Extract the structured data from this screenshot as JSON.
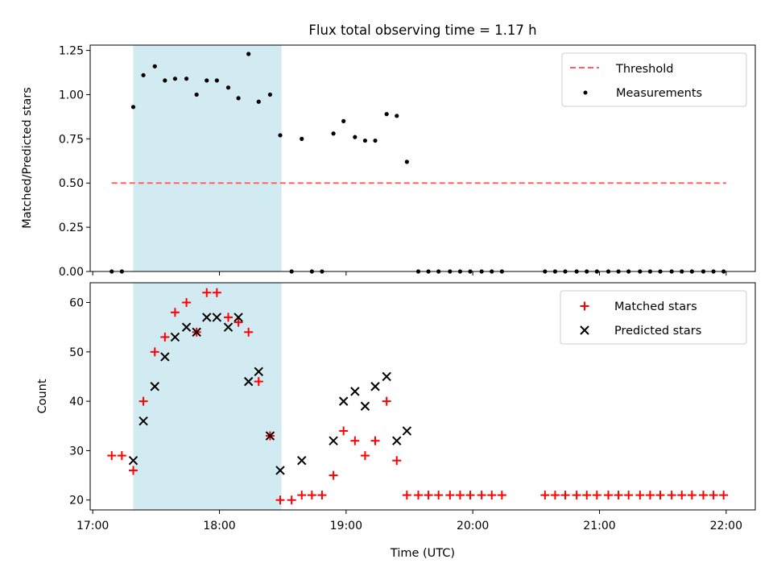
{
  "title": "Flux total observing time = 1.17 h",
  "chart_data": [
    {
      "type": "scatter",
      "panel": "top",
      "title": "Flux total observing time = 1.17 h",
      "xlabel": "",
      "ylabel": "Matched/Predicted stars",
      "x_unit": "hours UTC",
      "xlim": [
        16.98,
        22.23
      ],
      "ylim": [
        0.0,
        1.28
      ],
      "yticks": [
        0.0,
        0.25,
        0.5,
        0.75,
        1.0,
        1.25
      ],
      "ytick_labels": [
        "0.00",
        "0.25",
        "0.50",
        "0.75",
        "1.00",
        "1.25"
      ],
      "xticks": [
        17,
        18,
        19,
        20,
        21,
        22
      ],
      "show_xtick_labels": false,
      "grid": false,
      "legend": "top-right",
      "highlight_span": {
        "x": [
          17.32,
          18.49
        ],
        "color": "#add8e6"
      },
      "threshold": {
        "name": "Threshold",
        "y": 0.5,
        "x": [
          17.15,
          22.0
        ],
        "color": "#ff6060"
      },
      "series": [
        {
          "name": "Measurements",
          "color": "#000000",
          "marker": "dot",
          "points": [
            [
              17.15,
              0.0
            ],
            [
              17.23,
              0.0
            ],
            [
              17.32,
              0.93
            ],
            [
              17.4,
              1.11
            ],
            [
              17.49,
              1.16
            ],
            [
              17.57,
              1.08
            ],
            [
              17.65,
              1.09
            ],
            [
              17.74,
              1.09
            ],
            [
              17.82,
              1.0
            ],
            [
              17.9,
              1.08
            ],
            [
              17.98,
              1.08
            ],
            [
              18.07,
              1.04
            ],
            [
              18.15,
              0.98
            ],
            [
              18.23,
              1.23
            ],
            [
              18.31,
              0.96
            ],
            [
              18.4,
              1.0
            ],
            [
              18.48,
              0.77
            ],
            [
              18.57,
              0.0
            ],
            [
              18.65,
              0.75
            ],
            [
              18.73,
              0.0
            ],
            [
              18.81,
              0.0
            ],
            [
              18.9,
              0.78
            ],
            [
              18.98,
              0.85
            ],
            [
              19.07,
              0.76
            ],
            [
              19.15,
              0.74
            ],
            [
              19.23,
              0.74
            ],
            [
              19.32,
              0.89
            ],
            [
              19.4,
              0.88
            ],
            [
              19.48,
              0.62
            ],
            [
              19.57,
              0.0
            ],
            [
              19.65,
              0.0
            ],
            [
              19.73,
              0.0
            ],
            [
              19.82,
              0.0
            ],
            [
              19.9,
              0.0
            ],
            [
              19.98,
              0.0
            ],
            [
              20.07,
              0.0
            ],
            [
              20.15,
              0.0
            ],
            [
              20.23,
              0.0
            ],
            [
              20.57,
              0.0
            ],
            [
              20.65,
              0.0
            ],
            [
              20.73,
              0.0
            ],
            [
              20.82,
              0.0
            ],
            [
              20.9,
              0.0
            ],
            [
              20.98,
              0.0
            ],
            [
              21.07,
              0.0
            ],
            [
              21.15,
              0.0
            ],
            [
              21.23,
              0.0
            ],
            [
              21.32,
              0.0
            ],
            [
              21.4,
              0.0
            ],
            [
              21.48,
              0.0
            ],
            [
              21.57,
              0.0
            ],
            [
              21.65,
              0.0
            ],
            [
              21.73,
              0.0
            ],
            [
              21.82,
              0.0
            ],
            [
              21.9,
              0.0
            ],
            [
              21.98,
              0.0
            ]
          ]
        }
      ]
    },
    {
      "type": "scatter",
      "panel": "bottom",
      "xlabel": "Time (UTC)",
      "ylabel": "Count",
      "x_unit": "hours UTC",
      "xlim": [
        16.98,
        22.23
      ],
      "ylim": [
        18.0,
        64.0
      ],
      "yticks": [
        20,
        30,
        40,
        50,
        60
      ],
      "ytick_labels": [
        "20",
        "30",
        "40",
        "50",
        "60"
      ],
      "xticks": [
        17,
        18,
        19,
        20,
        21,
        22
      ],
      "xtick_labels": [
        "17:00",
        "18:00",
        "19:00",
        "20:00",
        "21:00",
        "22:00"
      ],
      "grid": false,
      "legend": "top-right",
      "highlight_span": {
        "x": [
          17.32,
          18.49
        ],
        "color": "#add8e6"
      },
      "series": [
        {
          "name": "Matched stars",
          "color": "#ff0000",
          "marker": "plus",
          "points": [
            [
              17.15,
              29
            ],
            [
              17.23,
              29
            ],
            [
              17.32,
              26
            ],
            [
              17.4,
              40
            ],
            [
              17.49,
              50
            ],
            [
              17.57,
              53
            ],
            [
              17.65,
              58
            ],
            [
              17.74,
              60
            ],
            [
              17.82,
              54
            ],
            [
              17.9,
              62
            ],
            [
              17.98,
              62
            ],
            [
              18.07,
              57
            ],
            [
              18.15,
              56
            ],
            [
              18.23,
              54
            ],
            [
              18.31,
              44
            ],
            [
              18.4,
              33
            ],
            [
              18.48,
              20
            ],
            [
              18.57,
              20
            ],
            [
              18.65,
              21
            ],
            [
              18.73,
              21
            ],
            [
              18.81,
              21
            ],
            [
              18.9,
              25
            ],
            [
              18.98,
              34
            ],
            [
              19.07,
              32
            ],
            [
              19.15,
              29
            ],
            [
              19.23,
              32
            ],
            [
              19.32,
              40
            ],
            [
              19.4,
              28
            ],
            [
              19.48,
              21
            ],
            [
              19.57,
              21
            ],
            [
              19.65,
              21
            ],
            [
              19.73,
              21
            ],
            [
              19.82,
              21
            ],
            [
              19.9,
              21
            ],
            [
              19.98,
              21
            ],
            [
              20.07,
              21
            ],
            [
              20.15,
              21
            ],
            [
              20.23,
              21
            ],
            [
              20.57,
              21
            ],
            [
              20.65,
              21
            ],
            [
              20.73,
              21
            ],
            [
              20.82,
              21
            ],
            [
              20.9,
              21
            ],
            [
              20.98,
              21
            ],
            [
              21.07,
              21
            ],
            [
              21.15,
              21
            ],
            [
              21.23,
              21
            ],
            [
              21.32,
              21
            ],
            [
              21.4,
              21
            ],
            [
              21.48,
              21
            ],
            [
              21.57,
              21
            ],
            [
              21.65,
              21
            ],
            [
              21.73,
              21
            ],
            [
              21.82,
              21
            ],
            [
              21.9,
              21
            ],
            [
              21.98,
              21
            ]
          ]
        },
        {
          "name": "Predicted stars",
          "color": "#000000",
          "marker": "x",
          "points": [
            [
              17.32,
              28
            ],
            [
              17.4,
              36
            ],
            [
              17.49,
              43
            ],
            [
              17.57,
              49
            ],
            [
              17.65,
              53
            ],
            [
              17.74,
              55
            ],
            [
              17.82,
              54
            ],
            [
              17.9,
              57
            ],
            [
              17.98,
              57
            ],
            [
              18.07,
              55
            ],
            [
              18.15,
              57
            ],
            [
              18.23,
              44
            ],
            [
              18.31,
              46
            ],
            [
              18.4,
              33
            ],
            [
              18.48,
              26
            ],
            [
              18.65,
              28
            ],
            [
              18.9,
              32
            ],
            [
              18.98,
              40
            ],
            [
              19.07,
              42
            ],
            [
              19.15,
              39
            ],
            [
              19.23,
              43
            ],
            [
              19.32,
              45
            ],
            [
              19.4,
              32
            ],
            [
              19.48,
              34
            ]
          ]
        }
      ]
    }
  ]
}
